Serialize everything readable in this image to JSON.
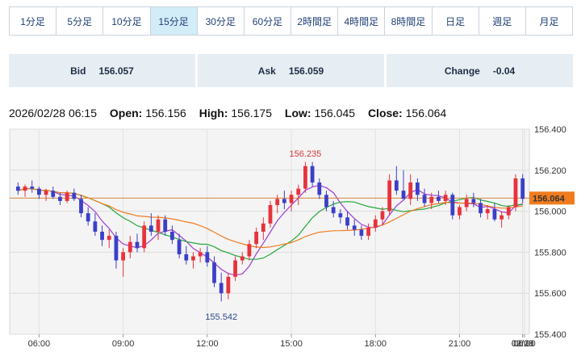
{
  "tabs": [
    {
      "label": "1分足",
      "active": false
    },
    {
      "label": "5分足",
      "active": false
    },
    {
      "label": "10分足",
      "active": false
    },
    {
      "label": "15分足",
      "active": true
    },
    {
      "label": "30分足",
      "active": false
    },
    {
      "label": "60分足",
      "active": false
    },
    {
      "label": "2時間足",
      "active": false
    },
    {
      "label": "4時間足",
      "active": false
    },
    {
      "label": "8時間足",
      "active": false
    },
    {
      "label": "日足",
      "active": false
    },
    {
      "label": "週足",
      "active": false
    },
    {
      "label": "月足",
      "active": false
    }
  ],
  "quote": {
    "bid_label": "Bid",
    "bid_value": "156.057",
    "ask_label": "Ask",
    "ask_value": "156.059",
    "change_label": "Change",
    "change_value": "-0.04"
  },
  "ohlc": {
    "datetime": "2026/02/28 06:15",
    "open_label": "Open:",
    "open": "156.156",
    "high_label": "High:",
    "high": "156.175",
    "low_label": "Low:",
    "low": "156.045",
    "close_label": "Close:",
    "close": "156.064"
  },
  "chart_data": {
    "type": "candlestick",
    "interval": "15分足",
    "ylim": [
      155.4,
      156.4
    ],
    "yticks": [
      "156.400",
      "156.200",
      "156.000",
      "155.800",
      "155.600",
      "155.400"
    ],
    "xticks": [
      "06:00",
      "09:00",
      "12:00",
      "15:00",
      "18:00",
      "21:00",
      "02/28",
      "03:00",
      "06:00"
    ],
    "current_price": "156.064",
    "annotations": {
      "high": "156.235",
      "low": "155.542"
    },
    "colors": {
      "up": "#e8323c",
      "down": "#3b3fc8",
      "ma_fast": "#a23bd6",
      "ma_mid": "#22a83a",
      "ma_slow": "#f07c1e",
      "price_line": "#d8843a",
      "price_tag": "#f07c1e"
    },
    "candles": [
      [
        156.12,
        156.14,
        156.08,
        156.1
      ],
      [
        156.1,
        156.13,
        156.07,
        156.12
      ],
      [
        156.12,
        156.15,
        156.09,
        156.11
      ],
      [
        156.11,
        156.12,
        156.06,
        156.08
      ],
      [
        156.08,
        156.11,
        156.05,
        156.1
      ],
      [
        156.1,
        156.12,
        156.06,
        156.07
      ],
      [
        156.07,
        156.09,
        156.03,
        156.05
      ],
      [
        156.05,
        156.1,
        156.04,
        156.09
      ],
      [
        156.09,
        156.11,
        156.05,
        156.06
      ],
      [
        156.06,
        156.08,
        155.97,
        155.99
      ],
      [
        155.99,
        156.02,
        155.93,
        155.95
      ],
      [
        155.95,
        155.99,
        155.88,
        155.9
      ],
      [
        155.9,
        155.93,
        155.83,
        155.86
      ],
      [
        155.86,
        155.91,
        155.82,
        155.88
      ],
      [
        155.88,
        155.9,
        155.72,
        155.76
      ],
      [
        155.76,
        155.82,
        155.68,
        155.8
      ],
      [
        155.8,
        155.88,
        155.77,
        155.85
      ],
      [
        155.85,
        155.89,
        155.8,
        155.82
      ],
      [
        155.82,
        155.95,
        155.8,
        155.93
      ],
      [
        155.93,
        155.99,
        155.88,
        155.9
      ],
      [
        155.9,
        155.98,
        155.86,
        155.96
      ],
      [
        155.96,
        155.98,
        155.88,
        155.9
      ],
      [
        155.9,
        155.93,
        155.84,
        155.86
      ],
      [
        155.86,
        155.89,
        155.77,
        155.79
      ],
      [
        155.79,
        155.83,
        155.74,
        155.76
      ],
      [
        155.76,
        155.8,
        155.72,
        155.78
      ],
      [
        155.78,
        155.82,
        155.75,
        155.8
      ],
      [
        155.8,
        155.83,
        155.73,
        155.75
      ],
      [
        155.75,
        155.78,
        155.63,
        155.65
      ],
      [
        155.65,
        155.7,
        155.56,
        155.6
      ],
      [
        155.6,
        155.7,
        155.57,
        155.68
      ],
      [
        155.68,
        155.78,
        155.66,
        155.76
      ],
      [
        155.76,
        155.8,
        155.74,
        155.78
      ],
      [
        155.78,
        155.86,
        155.76,
        155.84
      ],
      [
        155.84,
        155.92,
        155.82,
        155.9
      ],
      [
        155.9,
        155.97,
        155.86,
        155.94
      ],
      [
        155.94,
        156.05,
        155.92,
        156.03
      ],
      [
        156.03,
        156.08,
        155.99,
        156.06
      ],
      [
        156.06,
        156.1,
        156.01,
        156.04
      ],
      [
        156.04,
        156.1,
        156.0,
        156.08
      ],
      [
        156.08,
        156.13,
        156.03,
        156.11
      ],
      [
        156.11,
        156.24,
        156.09,
        156.22
      ],
      [
        156.22,
        156.24,
        156.12,
        156.14
      ],
      [
        156.14,
        156.16,
        156.06,
        156.08
      ],
      [
        156.08,
        156.1,
        156.0,
        156.02
      ],
      [
        156.02,
        156.05,
        155.97,
        155.99
      ],
      [
        155.99,
        156.01,
        155.94,
        155.97
      ],
      [
        155.97,
        156.0,
        155.91,
        155.93
      ],
      [
        155.93,
        155.96,
        155.88,
        155.91
      ],
      [
        155.91,
        155.93,
        155.86,
        155.88
      ],
      [
        155.88,
        155.94,
        155.86,
        155.92
      ],
      [
        155.92,
        155.98,
        155.9,
        155.96
      ],
      [
        155.96,
        156.02,
        155.93,
        156.0
      ],
      [
        156.0,
        156.18,
        155.98,
        156.15
      ],
      [
        156.15,
        156.22,
        156.08,
        156.1
      ],
      [
        156.1,
        156.2,
        156.07,
        156.06
      ],
      [
        156.06,
        156.18,
        156.03,
        156.14
      ],
      [
        156.14,
        156.16,
        156.05,
        156.08
      ],
      [
        156.08,
        156.11,
        156.02,
        156.04
      ],
      [
        156.04,
        156.09,
        156.01,
        156.07
      ],
      [
        156.07,
        156.1,
        156.04,
        156.05
      ],
      [
        156.05,
        156.1,
        156.03,
        156.08
      ],
      [
        156.08,
        156.09,
        155.96,
        155.98
      ],
      [
        155.98,
        156.03,
        155.96,
        156.02
      ],
      [
        156.02,
        156.08,
        156.0,
        156.06
      ],
      [
        156.06,
        156.09,
        156.02,
        156.04
      ],
      [
        156.04,
        156.06,
        155.97,
        155.99
      ],
      [
        155.99,
        156.03,
        155.96,
        156.01
      ],
      [
        156.01,
        156.04,
        155.95,
        155.96
      ],
      [
        155.96,
        156.0,
        155.92,
        155.98
      ],
      [
        155.98,
        156.03,
        155.96,
        156.02
      ],
      [
        156.02,
        156.18,
        156.0,
        156.16
      ],
      [
        156.16,
        156.18,
        156.04,
        156.06
      ]
    ]
  }
}
